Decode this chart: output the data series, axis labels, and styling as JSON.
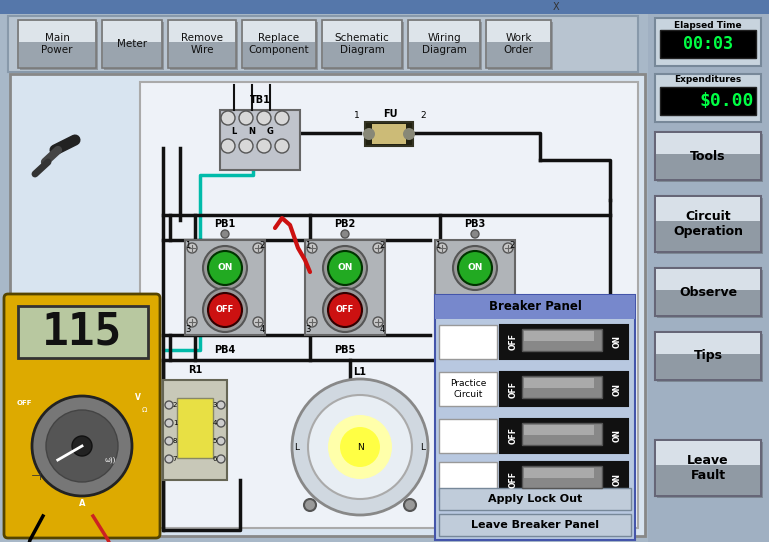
{
  "bg_color": "#a8b8c8",
  "sidebar_color": "#a0b0c4",
  "circuit_panel_bg": "#e8eef4",
  "circuit_inner_bg": "#f0f4f8",
  "toolbar_bg": "#c0ccd8",
  "title_bar_color": "#6688aa",
  "top_buttons": [
    "Main\nPower",
    "Meter",
    "Remove\nWire",
    "Replace\nComponent",
    "Schematic\nDiagram",
    "Wiring\nDiagram",
    "Work\nOrder"
  ],
  "right_buttons": [
    "Tools",
    "Circuit\nOperation",
    "Observe",
    "Tips",
    "Leave\nFault"
  ],
  "elapsed_label": "Elapsed Time",
  "elapsed_value": "00:03",
  "expenditures_label": "Expenditures",
  "expenditures_value": "$0.00",
  "breaker_panel_title": "Breaker Panel",
  "apply_lockout_btn": "Apply Lock Out",
  "leave_breaker_btn": "Leave Breaker Panel",
  "green_btn_color": "#22aa22",
  "red_btn_color": "#cc1111",
  "multimeter_bg": "#ddaa00",
  "multimeter_display": "115",
  "wire_black": "#111111",
  "wire_teal": "#00bbaa",
  "wire_red": "#cc1111"
}
